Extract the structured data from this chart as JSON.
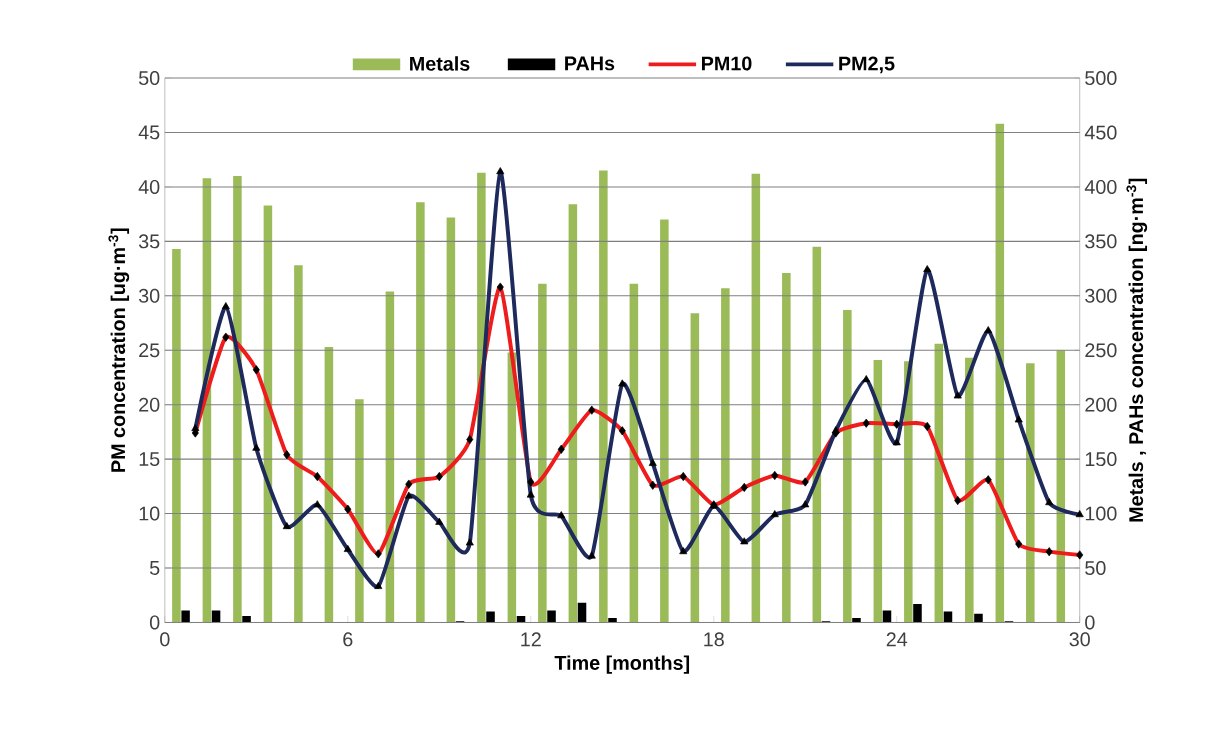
{
  "chart_data": {
    "type": "bar",
    "xlabel": "**Time [months]**",
    "ylabel": "**PM concentration [ug·m$^{-3}$]**",
    "y2label": "**Metals , PAHs concentration [ng·m$^{-3}$]**",
    "xlim": [
      0,
      30
    ],
    "xticks": [
      0,
      6,
      12,
      18,
      24,
      30
    ],
    "ylim": [
      0,
      50
    ],
    "yticks": [
      0,
      5,
      10,
      15,
      20,
      25,
      30,
      35,
      40,
      45,
      50
    ],
    "y2lim": [
      0,
      500
    ],
    "y2ticks": [
      0,
      50,
      100,
      150,
      200,
      250,
      300,
      350,
      400,
      450,
      500
    ],
    "grid": "y",
    "legend": "top",
    "series": [
      {
        "name": "Metals",
        "axis": "y2",
        "color": "#9bbb59",
        "x": [
          0.5,
          1.5,
          2.5,
          3.5,
          4.5,
          5.5,
          6.5,
          7.5,
          8.5,
          9.5,
          10.5,
          11.5,
          12.5,
          13.5,
          14.5,
          15.5,
          16.5,
          17.5,
          18.5,
          19.5,
          20.5,
          21.5,
          22.5,
          23.5,
          24.5,
          25.5,
          26.5,
          27.5,
          28.5,
          29.5
        ],
        "values": [
          343,
          408,
          410,
          383,
          328,
          253,
          205,
          304,
          386,
          372,
          413,
          248,
          311,
          384,
          415,
          311,
          370,
          284,
          307,
          412,
          321,
          345,
          287,
          241,
          240,
          256,
          243,
          458,
          238,
          250
        ]
      },
      {
        "name": "PAHs",
        "axis": "y2",
        "color": "#000000",
        "x": [
          0.5,
          1.5,
          2.5,
          3.5,
          4.5,
          5.5,
          6.5,
          7.5,
          8.5,
          9.5,
          10.5,
          11.5,
          12.5,
          13.5,
          14.5,
          15.5,
          16.5,
          17.5,
          18.5,
          19.5,
          20.5,
          21.5,
          22.5,
          23.5,
          24.5,
          25.5,
          26.5,
          27.5
        ],
        "values": [
          11,
          11,
          6,
          null,
          null,
          null,
          null,
          null,
          null,
          1,
          10,
          6,
          11,
          18,
          4,
          null,
          null,
          null,
          null,
          null,
          null,
          1,
          4,
          11,
          17,
          10,
          8,
          1
        ]
      },
      {
        "name": "PM10",
        "type": "line",
        "color": "#ee1c1c",
        "marker": "diamond",
        "x": [
          1,
          2,
          3,
          4,
          5,
          6,
          7,
          8,
          9,
          10,
          11,
          12,
          13,
          14,
          15,
          16,
          17,
          18,
          19,
          20,
          21,
          22,
          23,
          24,
          25,
          26,
          27,
          28,
          29,
          30
        ],
        "values": [
          17.4,
          26.2,
          23.2,
          15.4,
          13.4,
          10.4,
          6.3,
          12.7,
          13.4,
          16.8,
          30.8,
          12.9,
          15.9,
          19.5,
          17.6,
          12.6,
          13.4,
          10.8,
          12.4,
          13.5,
          12.9,
          17.4,
          18.3,
          18.2,
          18.0,
          11.2,
          13.1,
          7.2,
          6.5,
          6.2
        ]
      },
      {
        "name": "PM2,5",
        "type": "line",
        "color": "#1f2a5c",
        "marker": "triangle",
        "x": [
          1,
          2,
          3,
          4,
          5,
          6,
          7,
          8,
          9,
          10,
          11,
          12,
          13,
          14,
          15,
          16,
          17,
          18,
          19,
          20,
          21,
          22,
          23,
          24,
          25,
          26,
          27,
          28,
          29,
          30
        ],
        "values": [
          17.8,
          29.0,
          16.0,
          8.8,
          10.8,
          6.7,
          3.3,
          11.6,
          9.2,
          7.3,
          41.4,
          11.7,
          9.8,
          6.1,
          21.9,
          14.6,
          6.5,
          10.7,
          7.4,
          9.9,
          10.8,
          17.6,
          22.3,
          16.5,
          32.4,
          20.8,
          26.8,
          18.6,
          11.0,
          9.9
        ]
      }
    ]
  }
}
